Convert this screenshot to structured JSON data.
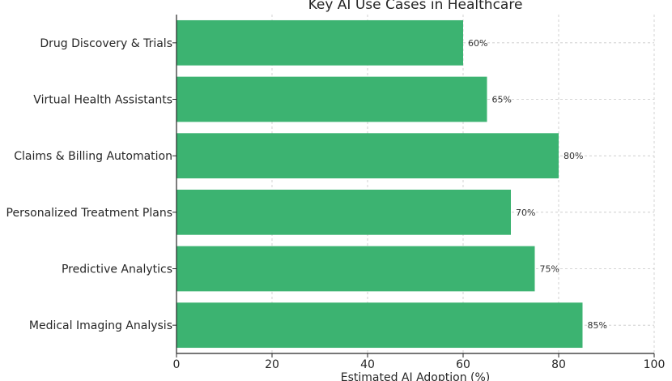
{
  "chart_data": {
    "type": "bar",
    "orientation": "horizontal",
    "title": "Key AI Use Cases in Healthcare",
    "xlabel": "Estimated AI Adoption (%)",
    "ylabel": "",
    "xlim": [
      0,
      100
    ],
    "xticks": [
      0,
      20,
      40,
      60,
      80,
      100
    ],
    "grid": true,
    "bar_color": "#3cb371",
    "categories": [
      "Medical Imaging Analysis",
      "Predictive Analytics",
      "Personalized Treatment Plans",
      "Claims & Billing Automation",
      "Virtual Health Assistants",
      "Drug Discovery & Trials"
    ],
    "values": [
      85,
      75,
      70,
      80,
      65,
      60
    ],
    "data_labels": [
      "85%",
      "75%",
      "70%",
      "80%",
      "65%",
      "60%"
    ]
  }
}
